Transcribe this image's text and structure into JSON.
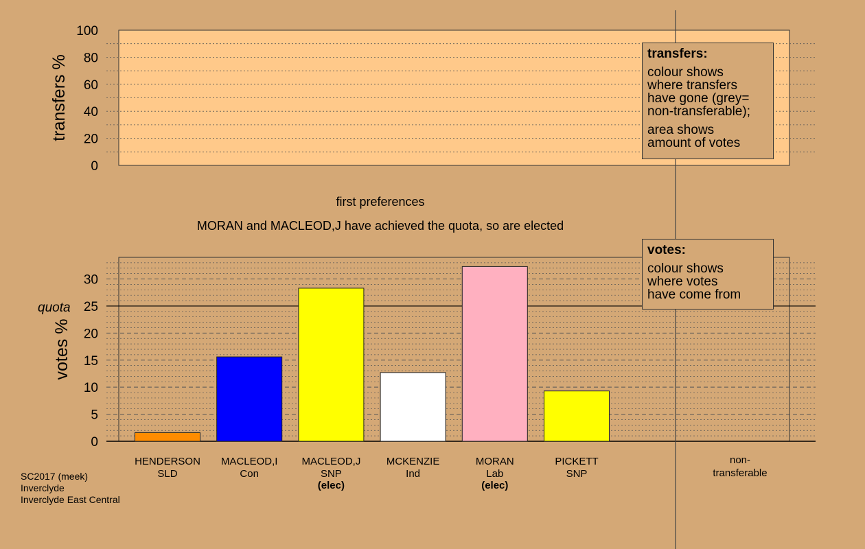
{
  "chart_data": [
    {
      "type": "bar",
      "ylabel": "transfers %",
      "ylim": [
        0,
        100
      ],
      "yticks": [
        0,
        20,
        40,
        60,
        80,
        100
      ],
      "series": [],
      "grid": true,
      "legend": {
        "title": "transfers:",
        "paragraphs": [
          "colour shows\nwhere transfers\nhave gone (grey=\nnon-transferable);",
          "area shows\namount of votes"
        ],
        "placement": "top-right"
      }
    },
    {
      "type": "bar",
      "title": "first preferences",
      "subtitle": "MORAN and MACLEOD,J have achieved the quota, so are elected",
      "ylabel": "votes %",
      "ylim": [
        0,
        34
      ],
      "yticks": [
        0,
        5,
        10,
        15,
        20,
        25,
        30
      ],
      "quota": 25,
      "quota_label": "quota",
      "grid": true,
      "categories": [
        {
          "name": "HENDERSON",
          "party": "SLD",
          "note": ""
        },
        {
          "name": "MACLEOD,I",
          "party": "Con",
          "note": ""
        },
        {
          "name": "MACLEOD,J",
          "party": "SNP",
          "note": "(elec)"
        },
        {
          "name": "MCKENZIE",
          "party": "Ind",
          "note": ""
        },
        {
          "name": "MORAN",
          "party": "Lab",
          "note": "(elec)"
        },
        {
          "name": "PICKETT",
          "party": "SNP",
          "note": ""
        }
      ],
      "values": [
        1.6,
        15.6,
        28.3,
        12.7,
        32.3,
        9.3
      ],
      "colors": [
        "#ff8c00",
        "#0000ff",
        "#ffff00",
        "#ffffff",
        "#ffb0c0",
        "#ffff00"
      ],
      "nontransferable_label": [
        "non-",
        "transferable"
      ],
      "legend": {
        "title": "votes:",
        "paragraphs": [
          "colour shows\nwhere votes\nhave come from"
        ],
        "placement": "top-right"
      }
    }
  ],
  "footer": {
    "line1": "SC2017 (meek)",
    "line2": "Inverclyde",
    "line3": "Inverclyde East Central"
  }
}
